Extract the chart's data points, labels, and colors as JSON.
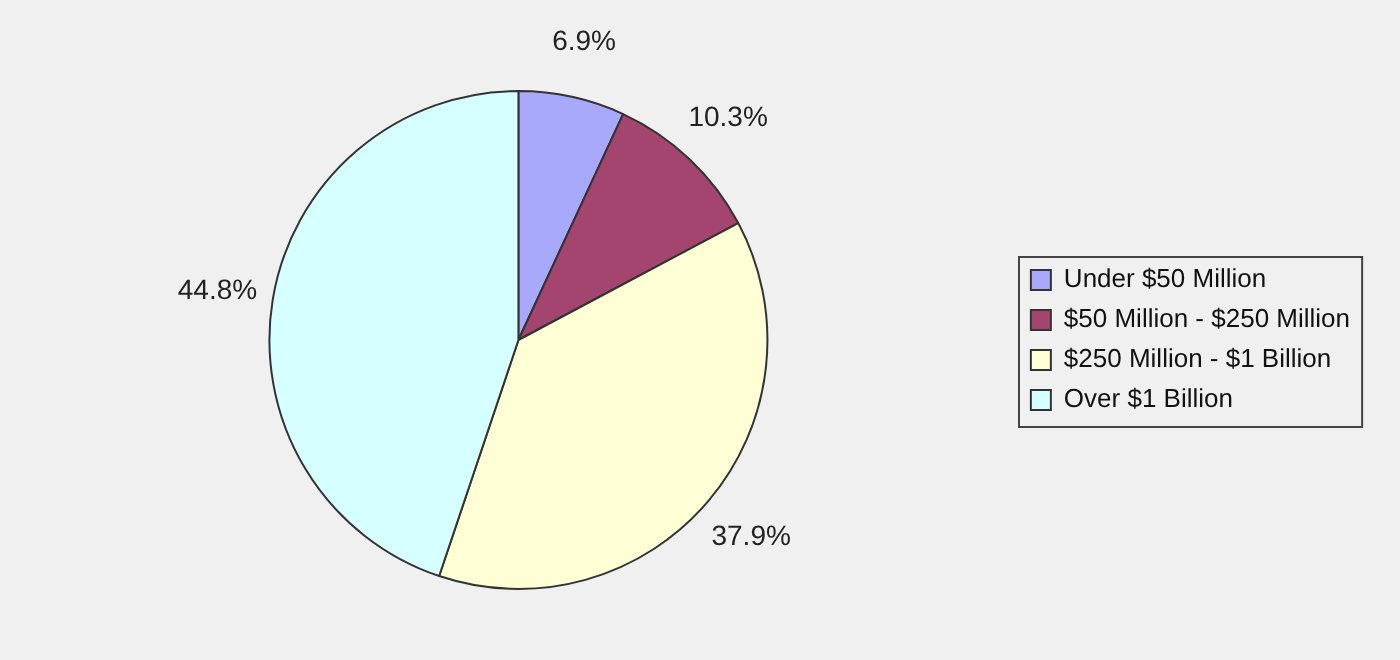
{
  "chart_data": {
    "type": "pie",
    "categories": [
      "Under $50 Million",
      "$50 Million - $250 Million",
      "$250 Million - $1 Billion",
      "Over $1 Billion"
    ],
    "values": [
      6.9,
      10.3,
      37.9,
      44.8
    ],
    "colors": [
      "#a9a9fb",
      "#a3456f",
      "#ffffd6",
      "#d6ffff"
    ],
    "value_labels": [
      "6.9%",
      "10.3%",
      "37.9%",
      "44.8%"
    ],
    "legend": "right"
  }
}
